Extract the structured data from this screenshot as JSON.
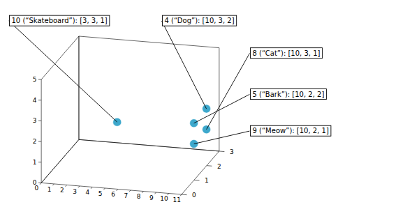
{
  "chart_data": {
    "type": "scatter3d",
    "x": [
      3,
      10,
      10,
      10,
      10
    ],
    "y": [
      3,
      3,
      3,
      2,
      2
    ],
    "z": [
      1,
      2,
      1,
      2,
      1
    ],
    "color": "#3da8cc",
    "xlim": [
      0,
      11
    ],
    "ylim": [
      0,
      3
    ],
    "zlim": [
      0,
      5
    ],
    "xticks": [
      0,
      1,
      2,
      3,
      4,
      5,
      6,
      7,
      8,
      9,
      10,
      11
    ],
    "yticks": [
      0,
      1,
      2,
      3
    ],
    "zticks": [
      0,
      1,
      2,
      3,
      4,
      5
    ],
    "annotations": [
      "10 (“Skateboard”): [3, 3, 1]",
      "4 (“Dog”): [10, 3, 2]",
      "8 (“Cat”): [10, 3, 1]",
      "5 (“Bark”): [10, 2, 2]",
      "9 (“Meow”): [10, 2, 1]"
    ],
    "grid": false
  }
}
